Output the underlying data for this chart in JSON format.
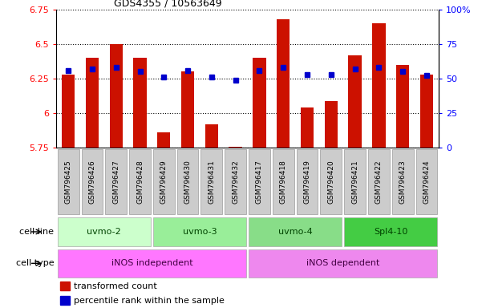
{
  "title": "GDS4355 / 10563649",
  "samples": [
    "GSM796425",
    "GSM796426",
    "GSM796427",
    "GSM796428",
    "GSM796429",
    "GSM796430",
    "GSM796431",
    "GSM796432",
    "GSM796417",
    "GSM796418",
    "GSM796419",
    "GSM796420",
    "GSM796421",
    "GSM796422",
    "GSM796423",
    "GSM796424"
  ],
  "red_values": [
    6.28,
    6.4,
    6.5,
    6.4,
    5.86,
    6.3,
    5.92,
    5.76,
    6.4,
    6.68,
    6.04,
    6.09,
    6.42,
    6.65,
    6.35,
    6.28
  ],
  "blue_values": [
    6.31,
    6.32,
    6.33,
    6.3,
    6.26,
    6.31,
    6.26,
    6.24,
    6.31,
    6.33,
    6.28,
    6.28,
    6.32,
    6.33,
    6.3,
    6.27
  ],
  "y_min": 5.75,
  "y_max": 6.75,
  "y_ticks": [
    5.75,
    6.0,
    6.25,
    6.5,
    6.75
  ],
  "y_tick_labels": [
    "5.75",
    "6",
    "6.25",
    "6.5",
    "6.75"
  ],
  "right_y_ticks": [
    0,
    25,
    50,
    75,
    100
  ],
  "right_y_tick_labels": [
    "0",
    "25",
    "50",
    "75",
    "100%"
  ],
  "cell_line_groups": [
    {
      "label": "uvmo-2",
      "start": 0,
      "end": 4,
      "color": "#ccffcc"
    },
    {
      "label": "uvmo-3",
      "start": 4,
      "end": 8,
      "color": "#99ee99"
    },
    {
      "label": "uvmo-4",
      "start": 8,
      "end": 12,
      "color": "#88dd88"
    },
    {
      "label": "Spl4-10",
      "start": 12,
      "end": 16,
      "color": "#44cc44"
    }
  ],
  "cell_type_groups": [
    {
      "label": "iNOS independent",
      "start": 0,
      "end": 8,
      "color": "#ff77ff"
    },
    {
      "label": "iNOS dependent",
      "start": 8,
      "end": 16,
      "color": "#ee88ee"
    }
  ],
  "legend_red_label": "transformed count",
  "legend_blue_label": "percentile rank within the sample",
  "bar_color": "#cc1100",
  "blue_color": "#0000cc",
  "bar_width": 0.55,
  "blue_marker_size": 4,
  "tick_box_color": "#cccccc",
  "tick_box_edge": "#999999"
}
